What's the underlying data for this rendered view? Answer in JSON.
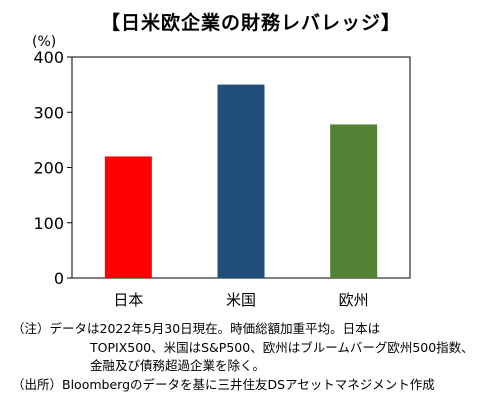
{
  "header": {
    "title": "【日米欧企業の財務レバレッジ】",
    "unit": "(%)"
  },
  "chart_data": {
    "type": "bar",
    "title": "【日米欧企業の財務レバレッジ】",
    "ylabel": "(%)",
    "xlabel": "",
    "categories": [
      "日本",
      "米国",
      "欧州"
    ],
    "values": [
      220,
      350,
      278
    ],
    "colors": [
      "#ff0000",
      "#1f4e79",
      "#548235"
    ],
    "ylim": [
      0,
      400
    ],
    "yticks": [
      "0",
      "100",
      "200",
      "300",
      "400"
    ],
    "grid": false,
    "legend": "none"
  },
  "notes": {
    "line1": "（注）データは2022年5月30日現在。時価総額加重平均。日本は",
    "line2": "TOPIX500、米国はS&P500、欧州はブルームバーグ欧州500指数、",
    "line3": "金融及び債務超過企業を除く。",
    "line4": "（出所）Bloombergのデータを基に三井住友DSアセットマネジメント作成"
  }
}
